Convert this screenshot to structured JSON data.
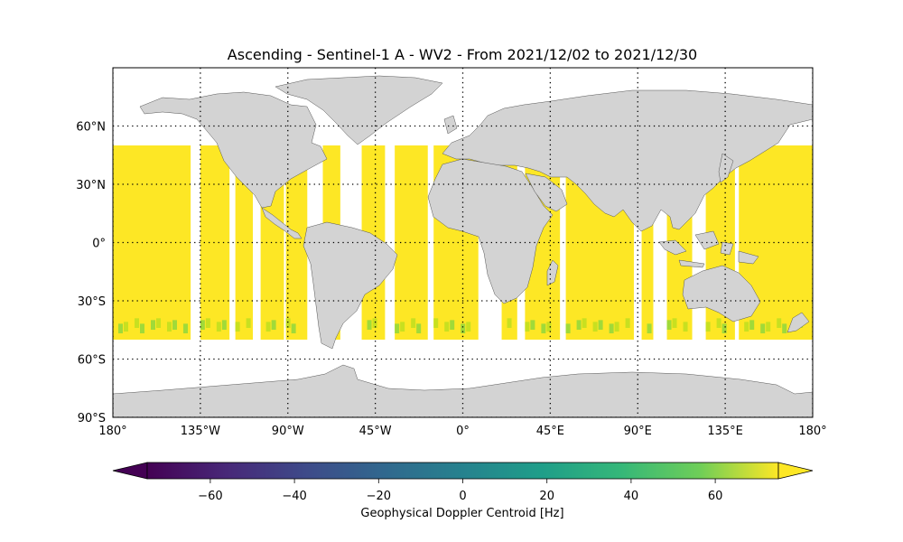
{
  "title": "Ascending - Sentinel-1 A - WV2 - From 2021/12/02 to 2021/12/30",
  "map": {
    "projection": "PlateCarree",
    "extent": {
      "lon": [
        -180,
        180
      ],
      "lat": [
        -90,
        90
      ]
    },
    "gridlines": "dotted",
    "land_color": "#d3d3d3",
    "ocean_color": "#ffffff",
    "lon_ticks": [
      {
        "value": -180,
        "label": "180°"
      },
      {
        "value": -135,
        "label": "135°W"
      },
      {
        "value": -90,
        "label": "90°W"
      },
      {
        "value": -45,
        "label": "45°W"
      },
      {
        "value": 0,
        "label": "0°"
      },
      {
        "value": 45,
        "label": "45°E"
      },
      {
        "value": 90,
        "label": "90°E"
      },
      {
        "value": 135,
        "label": "135°E"
      },
      {
        "value": 180,
        "label": "180°"
      }
    ],
    "lat_ticks": [
      {
        "value": 60,
        "label": "60°N"
      },
      {
        "value": 30,
        "label": "30°N"
      },
      {
        "value": 0,
        "label": "0°"
      },
      {
        "value": -30,
        "label": "30°S"
      },
      {
        "value": -60,
        "label": "60°S"
      },
      {
        "value": -90,
        "label": "90°S"
      }
    ]
  },
  "data_coverage": {
    "lat_range": [
      -50,
      50
    ],
    "typical_value_hz": 70,
    "swaths_lon_deg": [
      [
        -180,
        -140
      ],
      [
        -135,
        -120
      ],
      [
        -117,
        -108
      ],
      [
        -104,
        -92
      ],
      [
        -91,
        -80
      ],
      [
        -72,
        -63
      ],
      [
        -52,
        -40
      ],
      [
        -35,
        -18
      ],
      [
        -15,
        8
      ],
      [
        20,
        28
      ],
      [
        32,
        50
      ],
      [
        53,
        88
      ],
      [
        92,
        98
      ],
      [
        105,
        118
      ],
      [
        125,
        140
      ],
      [
        142,
        180
      ]
    ]
  },
  "colorbar": {
    "label": "Geophysical Doppler Centroid [Hz]",
    "colormap": "viridis",
    "range": [
      -75,
      75
    ],
    "extend": "both",
    "ticks": [
      {
        "value": -60,
        "label": "−60"
      },
      {
        "value": -40,
        "label": "−40"
      },
      {
        "value": -20,
        "label": "−20"
      },
      {
        "value": 0,
        "label": "0"
      },
      {
        "value": 20,
        "label": "20"
      },
      {
        "value": 40,
        "label": "40"
      },
      {
        "value": 60,
        "label": "60"
      }
    ]
  }
}
